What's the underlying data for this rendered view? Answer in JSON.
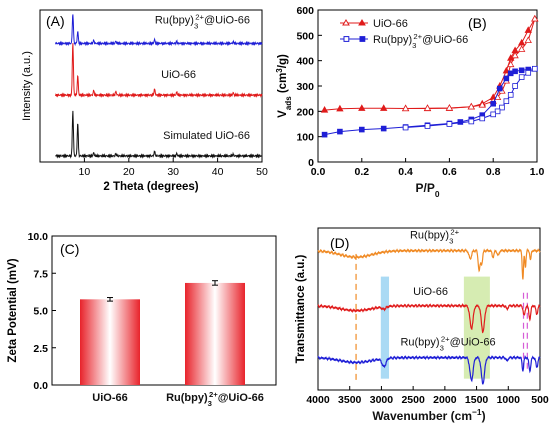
{
  "chart_data": [
    {
      "panel_label": "(A)",
      "type": "line",
      "xlabel": "2 Theta (degrees)",
      "ylabel": "Intensity (a.u.)",
      "xlim": [
        0,
        50
      ],
      "xticks": [
        "10",
        "20",
        "30",
        "40",
        "50"
      ],
      "series": [
        {
          "name": "Ru(bpy)3 2+@UiO-66",
          "color": "#1f1fd6",
          "baseline": 0.78,
          "peaks": [
            [
              7.4,
              0.2
            ],
            [
              8.5,
              0.08
            ],
            [
              12.1,
              0.02
            ],
            [
              17.1,
              0.015
            ],
            [
              25.8,
              0.025
            ],
            [
              30.8,
              0.012
            ],
            [
              43.5,
              0.01
            ]
          ]
        },
        {
          "name": "UiO-66",
          "color": "#e01b1b",
          "baseline": 0.44,
          "peaks": [
            [
              7.4,
              0.35
            ],
            [
              8.5,
              0.13
            ],
            [
              12.1,
              0.03
            ],
            [
              17.1,
              0.025
            ],
            [
              25.8,
              0.04
            ],
            [
              30.8,
              0.02
            ],
            [
              43.5,
              0.015
            ]
          ]
        },
        {
          "name": "Simulated UiO-66",
          "color": "#111111",
          "baseline": 0.04,
          "peaks": [
            [
              7.4,
              0.3
            ],
            [
              8.5,
              0.22
            ],
            [
              12.1,
              0.02
            ],
            [
              17.1,
              0.015
            ],
            [
              25.8,
              0.03
            ],
            [
              30.8,
              0.015
            ],
            [
              43.5,
              0.01
            ]
          ]
        }
      ]
    },
    {
      "panel_label": "(B)",
      "type": "line",
      "xlabel": "P/P",
      "xlabel_sub": "0",
      "ylabel": "V",
      "ylabel_sub": "ads",
      "ylabel_unit": " (cm",
      "ylabel_sup": "3",
      "ylabel_end": "/g)",
      "xlim": [
        0,
        1.0
      ],
      "ylim": [
        0,
        600
      ],
      "xticks": [
        "0.0",
        "0.2",
        "0.4",
        "0.6",
        "0.8",
        "1.0"
      ],
      "yticks": [
        "0",
        "100",
        "200",
        "300",
        "400",
        "500",
        "600"
      ],
      "legend": [
        {
          "text": "UiO-66",
          "color": "#e01b1b"
        },
        {
          "text": "Ru(bpy)",
          "sub": "3",
          "sup": "2+",
          "tail": "@UiO-66",
          "color": "#1f1fd6"
        }
      ],
      "series": [
        {
          "name": "UiO-66 adsorption",
          "color": "#e01b1b",
          "filled": true,
          "x": [
            0.03,
            0.1,
            0.2,
            0.3,
            0.4,
            0.5,
            0.6,
            0.7,
            0.75,
            0.8,
            0.83,
            0.86,
            0.88,
            0.9,
            0.93,
            0.96,
            0.99
          ],
          "y": [
            205,
            210,
            212,
            212,
            211,
            211,
            212,
            218,
            230,
            255,
            300,
            360,
            410,
            440,
            470,
            520,
            565
          ]
        },
        {
          "name": "UiO-66 desorption",
          "color": "#e01b1b",
          "filled": false,
          "x": [
            0.99,
            0.96,
            0.93,
            0.9,
            0.88,
            0.86,
            0.84,
            0.82,
            0.8,
            0.75,
            0.7,
            0.6,
            0.5,
            0.4
          ],
          "y": [
            565,
            480,
            445,
            420,
            385,
            320,
            280,
            255,
            240,
            225,
            218,
            213,
            212,
            211
          ]
        },
        {
          "name": "Ru(bpy)3 2+@UiO-66 adsorption",
          "color": "#1f1fd6",
          "filled": true,
          "x": [
            0.03,
            0.1,
            0.2,
            0.3,
            0.4,
            0.5,
            0.6,
            0.65,
            0.7,
            0.75,
            0.8,
            0.83,
            0.86,
            0.88,
            0.9,
            0.93,
            0.96,
            0.99
          ],
          "y": [
            108,
            120,
            128,
            132,
            138,
            145,
            152,
            158,
            168,
            185,
            230,
            290,
            330,
            350,
            358,
            362,
            365,
            368
          ]
        },
        {
          "name": "Ru(bpy)3 2+@UiO-66 desorption",
          "color": "#1f1fd6",
          "filled": false,
          "x": [
            0.99,
            0.96,
            0.93,
            0.9,
            0.88,
            0.86,
            0.84,
            0.82,
            0.8,
            0.75,
            0.7,
            0.6,
            0.5,
            0.4
          ],
          "y": [
            368,
            352,
            335,
            300,
            265,
            240,
            215,
            200,
            188,
            172,
            160,
            150,
            142,
            136
          ]
        }
      ]
    },
    {
      "panel_label": "(C)",
      "type": "bar",
      "ylabel": "Zeta Potential (mV)",
      "ylim": [
        0,
        10
      ],
      "yticks": [
        "0.0",
        "2.5",
        "5.0",
        "7.5",
        "10.0"
      ],
      "categories": [
        "UiO-66",
        "Ru(bpy)3 2+@UiO-66"
      ],
      "category_labels": [
        {
          "text": "UiO-66"
        },
        {
          "text": "Ru(bpy)",
          "sub": "3",
          "sup": "2+",
          "tail": "@UiO-66"
        }
      ],
      "values": [
        5.75,
        6.85
      ],
      "errors": [
        0.12,
        0.15
      ],
      "bar_color": "#e8232b"
    },
    {
      "panel_label": "(D)",
      "type": "line",
      "xlabel": "Wavenumber (cm",
      "xlabel_sup": "−1",
      "xlabel_end": ")",
      "ylabel": "Transmittance (a.u.)",
      "xlim": [
        4000,
        500
      ],
      "xticks": [
        "4000",
        "3500",
        "3000",
        "2500",
        "2000",
        "1500",
        "1000",
        "500"
      ],
      "highlight_bands": [
        {
          "from": 3010,
          "to": 2880,
          "color": "#9bd4f2"
        },
        {
          "from": 1700,
          "to": 1290,
          "color": "#cfe9a5"
        }
      ],
      "reference_lines": [
        {
          "x": 3400,
          "color": "#f08a24"
        },
        {
          "x": 760,
          "color": "#d65bd6"
        },
        {
          "x": 700,
          "color": "#d65bd6"
        }
      ],
      "series": [
        {
          "name": "Ru(bpy)3 2+",
          "label": "Ru(bpy)",
          "label_sub": "3",
          "label_sup": "2+",
          "label_tail": "",
          "color": "#f08a24",
          "baseline": 0.86,
          "label_x": 2550,
          "label_dy": -0.1,
          "bands": [
            [
              3400,
              0.04,
              250
            ],
            [
              1600,
              0.05,
              20
            ],
            [
              1460,
              0.12,
              15
            ],
            [
              1420,
              0.08,
              15
            ],
            [
              1240,
              0.04,
              15
            ],
            [
              1160,
              0.03,
              15
            ],
            [
              770,
              0.18,
              10
            ],
            [
              730,
              0.1,
              10
            ],
            [
              650,
              0.06,
              10
            ]
          ]
        },
        {
          "name": "UiO-66",
          "label": "UiO-66",
          "label_tail": "",
          "color": "#e01b1b",
          "baseline": 0.52,
          "label_x": 2500,
          "label_dy": -0.09,
          "bands": [
            [
              3400,
              0.03,
              250
            ],
            [
              2960,
              0.015,
              30
            ],
            [
              1580,
              0.14,
              25
            ],
            [
              1400,
              0.16,
              25
            ],
            [
              1020,
              0.02,
              15
            ],
            [
              750,
              0.06,
              15
            ],
            [
              660,
              0.08,
              15
            ],
            [
              550,
              0.05,
              15
            ]
          ]
        },
        {
          "name": "Ru(bpy)3 2+@UiO-66",
          "label": "Ru(bpy)",
          "label_sub": "3",
          "label_sup": "2+",
          "label_tail": "@UiO-66",
          "color": "#1f1fd6",
          "baseline": 0.2,
          "label_x": 2700,
          "label_dy": -0.1,
          "bands": [
            [
              3400,
              0.03,
              250
            ],
            [
              2960,
              0.05,
              30
            ],
            [
              1580,
              0.14,
              25
            ],
            [
              1400,
              0.16,
              25
            ],
            [
              1020,
              0.02,
              15
            ],
            [
              770,
              0.08,
              12
            ],
            [
              660,
              0.08,
              15
            ],
            [
              550,
              0.06,
              15
            ]
          ]
        }
      ]
    }
  ]
}
